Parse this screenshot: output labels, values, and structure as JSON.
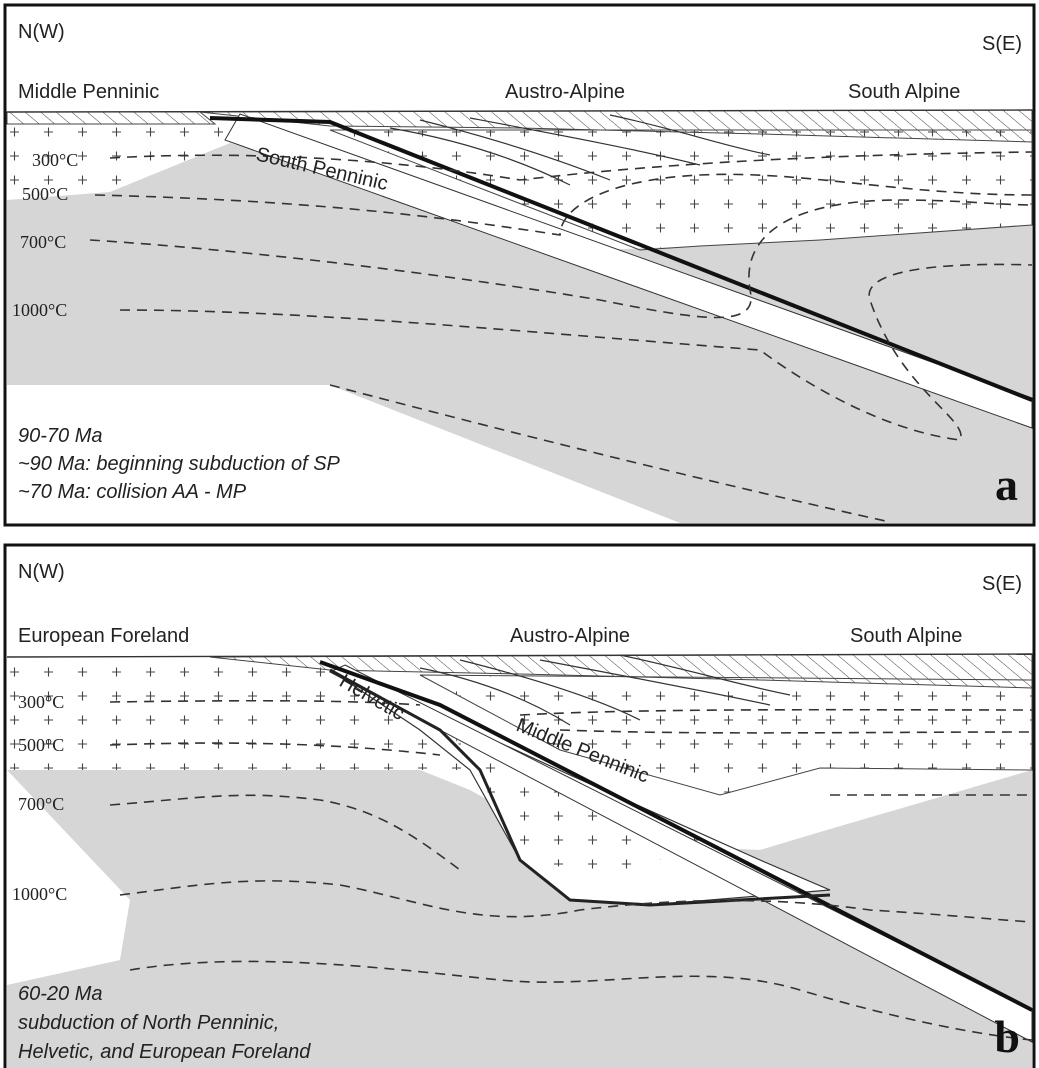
{
  "panels": [
    {
      "orientation_left": "N(W)",
      "orientation_right": "S(E)",
      "unit_labels": [
        "Middle Penninic",
        "Austro-Alpine",
        "South Alpine",
        "South Penninic"
      ],
      "isotherms": [
        "300°C",
        "500°C",
        "700°C",
        "1000°C"
      ],
      "caption": [
        "90-70 Ma",
        "~90 Ma: beginning subduction of SP",
        "~70 Ma: collision AA - MP"
      ],
      "letter": "a"
    },
    {
      "orientation_left": "N(W)",
      "orientation_right": "S(E)",
      "unit_labels": [
        "European Foreland",
        "Austro-Alpine",
        "South Alpine",
        "Helvetic",
        "Middle Penninic"
      ],
      "isotherms": [
        "300°C",
        "500°C",
        "700°C",
        "1000°C"
      ],
      "caption": [
        "60-20 Ma",
        "subduction of North Penninic,",
        "Helvetic, and European Foreland"
      ],
      "letter": "b"
    }
  ]
}
